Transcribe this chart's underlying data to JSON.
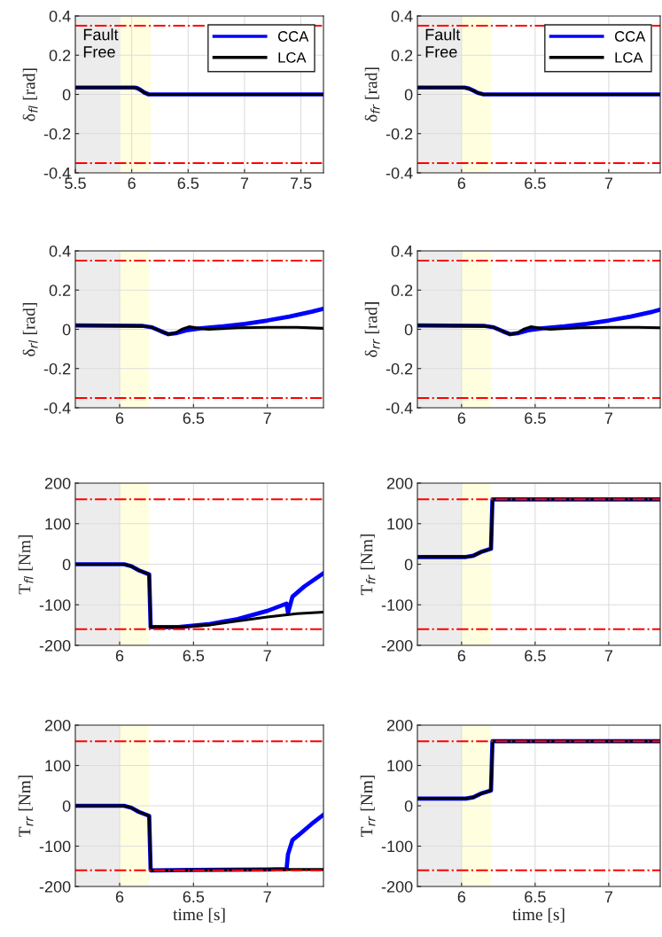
{
  "chart_data": [
    {
      "type": "line",
      "ylabel": "δ$_{fl}$ [rad]",
      "xlim": [
        5.5,
        7.7
      ],
      "xticks": [
        5.5,
        6,
        6.5,
        7,
        7.5
      ],
      "ylim": [
        -0.4,
        0.4
      ],
      "yticks": [
        -0.4,
        -0.2,
        0,
        0.2,
        0.4
      ],
      "grid": true,
      "legend": "top right",
      "annotations": [
        "Fault\nFree"
      ],
      "bands": [
        {
          "axis": "x",
          "from": 5.5,
          "to": 5.9,
          "color": "#ececec"
        },
        {
          "axis": "x",
          "from": 5.9,
          "to": 6.17,
          "color": "#ffffe0"
        }
      ],
      "ref_lines": [
        {
          "axis": "y",
          "value": 0.35,
          "color": "#ff0000",
          "line_style": "dashdot"
        },
        {
          "axis": "y",
          "value": -0.35,
          "color": "#ff0000",
          "line_style": "dashdot"
        }
      ],
      "series": [
        {
          "name": "CCA",
          "color": "#0000ff",
          "x": [
            5.5,
            6.02,
            6.05,
            6.08,
            6.11,
            6.15,
            6.2,
            7.7
          ],
          "values": [
            0.035,
            0.035,
            0.032,
            0.022,
            0.01,
            0.0,
            0.0,
            0.0
          ]
        },
        {
          "name": "LCA",
          "color": "#000000",
          "x": [
            5.5,
            6.02,
            6.05,
            6.08,
            6.11,
            6.15,
            6.2,
            7.7
          ],
          "values": [
            0.035,
            0.035,
            0.032,
            0.022,
            0.01,
            0.0,
            0.0,
            0.0
          ]
        }
      ]
    },
    {
      "type": "line",
      "ylabel": "δ$_{fr}$ [rad]",
      "xlim": [
        5.7,
        7.35
      ],
      "xticks": [
        6,
        6.5,
        7
      ],
      "ylim": [
        -0.4,
        0.4
      ],
      "yticks": [
        -0.4,
        -0.2,
        0,
        0.2,
        0.4
      ],
      "grid": true,
      "legend": "top right",
      "annotations": [
        "Fault\nFree"
      ],
      "bands": [
        {
          "axis": "x",
          "from": 5.7,
          "to": 6.0,
          "color": "#ececec"
        },
        {
          "axis": "x",
          "from": 6.0,
          "to": 6.2,
          "color": "#ffffe0"
        }
      ],
      "ref_lines": [
        {
          "axis": "y",
          "value": 0.35,
          "color": "#ff0000",
          "line_style": "dashdot"
        },
        {
          "axis": "y",
          "value": -0.35,
          "color": "#ff0000",
          "line_style": "dashdot"
        }
      ],
      "series": [
        {
          "name": "CCA",
          "color": "#0000ff",
          "x": [
            5.7,
            6.02,
            6.05,
            6.08,
            6.11,
            6.15,
            6.2,
            7.35
          ],
          "values": [
            0.035,
            0.035,
            0.03,
            0.02,
            0.008,
            0.0,
            0.0,
            0.0
          ]
        },
        {
          "name": "LCA",
          "color": "#000000",
          "x": [
            5.7,
            6.02,
            6.05,
            6.08,
            6.11,
            6.15,
            6.2,
            7.35
          ],
          "values": [
            0.035,
            0.035,
            0.03,
            0.02,
            0.008,
            0.0,
            0.0,
            0.0
          ]
        }
      ]
    },
    {
      "type": "line",
      "ylabel": "δ$_{rl}$ [rad]",
      "xlim": [
        5.7,
        7.38
      ],
      "xticks": [
        6,
        6.5,
        7
      ],
      "ylim": [
        -0.4,
        0.4
      ],
      "yticks": [
        -0.4,
        -0.2,
        0,
        0.2,
        0.4
      ],
      "grid": true,
      "bands": [
        {
          "axis": "x",
          "from": 5.7,
          "to": 6.0,
          "color": "#ececec"
        },
        {
          "axis": "x",
          "from": 6.0,
          "to": 6.2,
          "color": "#ffffe0"
        }
      ],
      "ref_lines": [
        {
          "axis": "y",
          "value": 0.35,
          "color": "#ff0000",
          "line_style": "dashdot"
        },
        {
          "axis": "y",
          "value": -0.35,
          "color": "#ff0000",
          "line_style": "dashdot"
        }
      ],
      "series": [
        {
          "color": "#0000ff",
          "x": [
            5.7,
            6.15,
            6.22,
            6.28,
            6.33,
            6.38,
            6.45,
            6.55,
            6.7,
            6.85,
            7.0,
            7.15,
            7.3,
            7.38
          ],
          "values": [
            0.02,
            0.018,
            0.01,
            -0.01,
            -0.025,
            -0.02,
            -0.005,
            0.005,
            0.015,
            0.028,
            0.045,
            0.065,
            0.09,
            0.105
          ]
        },
        {
          "color": "#000000",
          "x": [
            5.7,
            6.15,
            6.22,
            6.28,
            6.33,
            6.38,
            6.42,
            6.47,
            6.52,
            6.6,
            6.8,
            7.0,
            7.2,
            7.38
          ],
          "values": [
            0.02,
            0.018,
            0.01,
            -0.01,
            -0.025,
            -0.018,
            0.0,
            0.013,
            0.008,
            0.0,
            0.008,
            0.01,
            0.01,
            0.005
          ]
        }
      ]
    },
    {
      "type": "line",
      "ylabel": "δ$_{rr}$ [rad]",
      "xlim": [
        5.7,
        7.35
      ],
      "xticks": [
        6,
        6.5,
        7
      ],
      "ylim": [
        -0.4,
        0.4
      ],
      "yticks": [
        -0.4,
        -0.2,
        0,
        0.2,
        0.4
      ],
      "grid": true,
      "bands": [
        {
          "axis": "x",
          "from": 5.7,
          "to": 6.0,
          "color": "#ececec"
        },
        {
          "axis": "x",
          "from": 6.0,
          "to": 6.2,
          "color": "#ffffe0"
        }
      ],
      "ref_lines": [
        {
          "axis": "y",
          "value": 0.35,
          "color": "#ff0000",
          "line_style": "dashdot"
        },
        {
          "axis": "y",
          "value": -0.35,
          "color": "#ff0000",
          "line_style": "dashdot"
        }
      ],
      "series": [
        {
          "color": "#0000ff",
          "x": [
            5.7,
            6.15,
            6.22,
            6.28,
            6.33,
            6.38,
            6.45,
            6.55,
            6.7,
            6.85,
            7.0,
            7.15,
            7.3,
            7.35
          ],
          "values": [
            0.02,
            0.018,
            0.01,
            -0.01,
            -0.025,
            -0.02,
            -0.005,
            0.005,
            0.015,
            0.028,
            0.045,
            0.065,
            0.09,
            0.1
          ]
        },
        {
          "color": "#000000",
          "x": [
            5.7,
            6.15,
            6.22,
            6.28,
            6.33,
            6.38,
            6.42,
            6.47,
            6.52,
            6.6,
            6.8,
            7.0,
            7.2,
            7.35
          ],
          "values": [
            0.02,
            0.018,
            0.01,
            -0.01,
            -0.025,
            -0.018,
            0.0,
            0.013,
            0.008,
            0.0,
            0.008,
            0.01,
            0.01,
            0.008
          ]
        }
      ]
    },
    {
      "type": "line",
      "ylabel": "T$_{fl}$ [Nm]",
      "xlim": [
        5.7,
        7.38
      ],
      "xticks": [
        6,
        6.5,
        7
      ],
      "ylim": [
        -200,
        200
      ],
      "yticks": [
        -200,
        -100,
        0,
        100,
        200
      ],
      "grid": true,
      "bands": [
        {
          "axis": "x",
          "from": 5.7,
          "to": 6.0,
          "color": "#ececec"
        },
        {
          "axis": "x",
          "from": 6.0,
          "to": 6.2,
          "color": "#ffffe0"
        }
      ],
      "ref_lines": [
        {
          "axis": "y",
          "value": 160,
          "color": "#ff0000",
          "line_style": "dashdot"
        },
        {
          "axis": "y",
          "value": -160,
          "color": "#ff0000",
          "line_style": "dashdot"
        }
      ],
      "series": [
        {
          "color": "#0000ff",
          "x": [
            5.7,
            6.03,
            6.08,
            6.13,
            6.2,
            6.21,
            6.4,
            6.6,
            6.8,
            7.0,
            7.13,
            7.14,
            7.17,
            7.25,
            7.38
          ],
          "values": [
            0,
            0,
            -5,
            -15,
            -25,
            -155,
            -155,
            -148,
            -135,
            -115,
            -97,
            -120,
            -80,
            -55,
            -22
          ]
        },
        {
          "color": "#000000",
          "x": [
            5.7,
            6.03,
            6.08,
            6.13,
            6.2,
            6.21,
            6.4,
            6.6,
            6.8,
            7.0,
            7.2,
            7.38
          ],
          "values": [
            0,
            0,
            -5,
            -15,
            -25,
            -155,
            -155,
            -150,
            -140,
            -130,
            -122,
            -118
          ]
        }
      ]
    },
    {
      "type": "line",
      "ylabel": "T$_{fr}$ [Nm]",
      "xlim": [
        5.7,
        7.35
      ],
      "xticks": [
        6,
        6.5,
        7
      ],
      "ylim": [
        -200,
        200
      ],
      "yticks": [
        -200,
        -100,
        0,
        100,
        200
      ],
      "grid": true,
      "bands": [
        {
          "axis": "x",
          "from": 5.7,
          "to": 6.0,
          "color": "#ececec"
        },
        {
          "axis": "x",
          "from": 6.0,
          "to": 6.2,
          "color": "#ffffe0"
        }
      ],
      "ref_lines": [
        {
          "axis": "y",
          "value": 160,
          "color": "#ff0000",
          "line_style": "dashdot"
        },
        {
          "axis": "y",
          "value": -160,
          "color": "#ff0000",
          "line_style": "dashdot"
        }
      ],
      "series": [
        {
          "color": "#0000ff",
          "x": [
            5.7,
            6.03,
            6.08,
            6.13,
            6.2,
            6.21,
            7.35
          ],
          "values": [
            18,
            18,
            21,
            30,
            38,
            160,
            160
          ]
        },
        {
          "color": "#000000",
          "x": [
            5.7,
            6.03,
            6.08,
            6.13,
            6.2,
            6.21,
            7.35
          ],
          "values": [
            18,
            18,
            21,
            30,
            38,
            160,
            160
          ]
        }
      ]
    },
    {
      "type": "line",
      "ylabel": "T$_{rr}$ [Nm]",
      "xlabel": "time [s]",
      "xlim": [
        5.7,
        7.38
      ],
      "xticks": [
        6,
        6.5,
        7
      ],
      "ylim": [
        -200,
        200
      ],
      "yticks": [
        -200,
        -100,
        0,
        100,
        200
      ],
      "grid": true,
      "bands": [
        {
          "axis": "x",
          "from": 5.7,
          "to": 6.0,
          "color": "#ececec"
        },
        {
          "axis": "x",
          "from": 6.0,
          "to": 6.2,
          "color": "#ffffe0"
        }
      ],
      "ref_lines": [
        {
          "axis": "y",
          "value": 160,
          "color": "#ff0000",
          "line_style": "dashdot"
        },
        {
          "axis": "y",
          "value": -160,
          "color": "#ff0000",
          "line_style": "dashdot"
        }
      ],
      "series": [
        {
          "color": "#0000ff",
          "x": [
            5.7,
            6.03,
            6.08,
            6.13,
            6.2,
            6.21,
            6.5,
            7.0,
            7.13,
            7.14,
            7.17,
            7.22,
            7.3,
            7.38
          ],
          "values": [
            0,
            0,
            -5,
            -15,
            -25,
            -160,
            -159,
            -158,
            -157,
            -120,
            -85,
            -70,
            -45,
            -22
          ]
        },
        {
          "color": "#000000",
          "x": [
            5.7,
            6.03,
            6.08,
            6.13,
            6.2,
            6.21,
            6.5,
            7.0,
            7.38
          ],
          "values": [
            0,
            0,
            -5,
            -15,
            -25,
            -160,
            -159,
            -158,
            -158
          ]
        }
      ]
    },
    {
      "type": "line",
      "ylabel": "T$_{rr}$ [Nm]",
      "xlabel": "time [s]",
      "xlim": [
        5.7,
        7.35
      ],
      "xticks": [
        6,
        6.5,
        7
      ],
      "ylim": [
        -200,
        200
      ],
      "yticks": [
        -200,
        -100,
        0,
        100,
        200
      ],
      "grid": true,
      "bands": [
        {
          "axis": "x",
          "from": 5.7,
          "to": 6.0,
          "color": "#ececec"
        },
        {
          "axis": "x",
          "from": 6.0,
          "to": 6.2,
          "color": "#ffffe0"
        }
      ],
      "ref_lines": [
        {
          "axis": "y",
          "value": 160,
          "color": "#ff0000",
          "line_style": "dashdot"
        },
        {
          "axis": "y",
          "value": -160,
          "color": "#ff0000",
          "line_style": "dashdot"
        }
      ],
      "series": [
        {
          "color": "#0000ff",
          "x": [
            5.7,
            6.03,
            6.08,
            6.13,
            6.2,
            6.21,
            7.35
          ],
          "values": [
            18,
            18,
            21,
            30,
            38,
            160,
            160
          ]
        },
        {
          "color": "#000000",
          "x": [
            5.7,
            6.03,
            6.08,
            6.13,
            6.2,
            6.21,
            7.35
          ],
          "values": [
            18,
            18,
            21,
            30,
            38,
            160,
            160
          ]
        }
      ]
    }
  ]
}
